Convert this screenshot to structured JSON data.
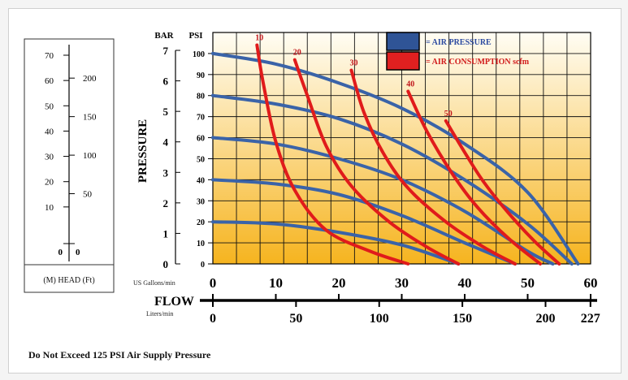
{
  "chart_data": {
    "type": "line",
    "note": "Do Not Exceed 125 PSI Air Supply Pressure",
    "pressure_axis": {
      "label": "PRESSURE",
      "bar_title": "BAR",
      "psi_title": "PSI",
      "bar_ticks": [
        "0",
        "1",
        "2",
        "3",
        "4",
        "5",
        "6",
        "7"
      ],
      "psi_ticks": [
        "0",
        "10",
        "20",
        "30",
        "40",
        "50",
        "60",
        "70",
        "80",
        "90",
        "100"
      ],
      "ylim_psi": [
        0,
        110
      ]
    },
    "flow_axis": {
      "label": "FLOW",
      "gpm_unit": "US Gallons/min",
      "lpm_unit": "Liters/min",
      "gpm_ticks": [
        "0",
        "10",
        "20",
        "30",
        "40",
        "50",
        "60"
      ],
      "lpm_ticks": [
        "0",
        "50",
        "100",
        "150",
        "200",
        "227"
      ],
      "xlim_gpm": [
        0,
        60
      ]
    },
    "head_axis": {
      "label": "(M) HEAD (Ft)",
      "m_ticks": [
        "0",
        "10",
        "20",
        "30",
        "40",
        "50",
        "60",
        "70"
      ],
      "ft_ticks": [
        "0",
        "50",
        "100",
        "150",
        "200"
      ]
    },
    "legend": [
      {
        "label": "= AIR PRESSURE",
        "color": "#2f5496"
      },
      {
        "label": "= AIR CONSUMPTION scfm",
        "color": "#e02020"
      }
    ],
    "colors": {
      "air_pressure": "#3a63a8",
      "air_consumption": "#e01b1b",
      "fill_top": "#fffdf4",
      "fill_bottom": "#f6b41f",
      "consumption_label": "#c0161c",
      "legend_text_blue": "#2b4aa0",
      "legend_text_red": "#d11a1a"
    },
    "air_pressure_curves": [
      {
        "x": [
          0,
          10,
          20,
          30,
          40,
          50,
          58
        ],
        "y": [
          100,
          95,
          86,
          74,
          57,
          34,
          0
        ]
      },
      {
        "x": [
          0,
          10,
          20,
          30,
          40,
          50,
          57
        ],
        "y": [
          80,
          76,
          69,
          57,
          40,
          19,
          0
        ]
      },
      {
        "x": [
          0,
          10,
          20,
          30,
          40,
          50,
          54
        ],
        "y": [
          60,
          57,
          50,
          40,
          25,
          6,
          0
        ]
      },
      {
        "x": [
          0,
          10,
          20,
          30,
          40,
          48
        ],
        "y": [
          40,
          38,
          33,
          23,
          10,
          0
        ]
      },
      {
        "x": [
          0,
          10,
          20,
          30,
          39
        ],
        "y": [
          20,
          19,
          15,
          9,
          0
        ]
      }
    ],
    "air_consumption_curves": [
      {
        "label": "10",
        "x": [
          7,
          8,
          10,
          13,
          18,
          25,
          31
        ],
        "y": [
          104,
          86,
          58,
          35,
          16,
          6,
          0
        ]
      },
      {
        "label": "20",
        "x": [
          13,
          15,
          18,
          22,
          28,
          34,
          39
        ],
        "y": [
          97,
          80,
          56,
          37,
          20,
          8,
          0
        ]
      },
      {
        "label": "30",
        "x": [
          22,
          24,
          27,
          31,
          37,
          43,
          48
        ],
        "y": [
          92,
          72,
          53,
          36,
          20,
          8,
          0
        ]
      },
      {
        "label": "40",
        "x": [
          31,
          34,
          38,
          42,
          47,
          52
        ],
        "y": [
          82,
          63,
          43,
          27,
          12,
          0
        ]
      },
      {
        "label": "50",
        "x": [
          37,
          40,
          43,
          47,
          51,
          55
        ],
        "y": [
          68,
          53,
          39,
          24,
          11,
          0
        ]
      }
    ]
  }
}
